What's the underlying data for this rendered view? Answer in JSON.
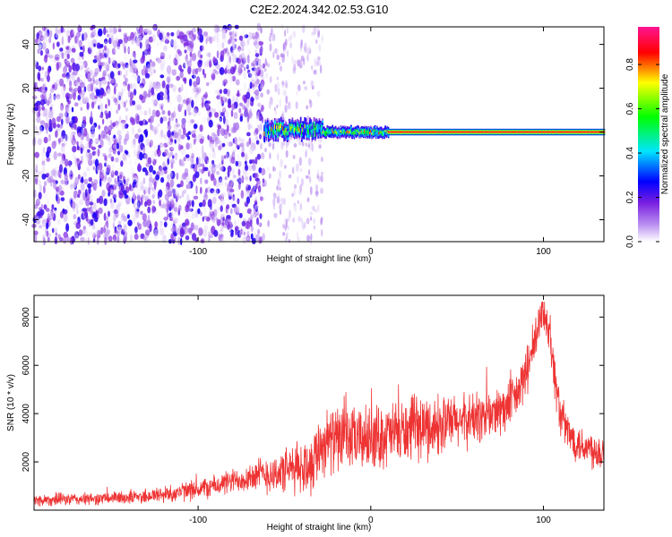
{
  "chart_data": [
    {
      "type": "heatmap",
      "title": "C2E2.2024.342.02.53.G10",
      "xlabel": "Height of straight line (km)",
      "ylabel": "Frequency (Hz)",
      "xlim": [
        -195,
        135
      ],
      "ylim": [
        -50,
        48
      ],
      "xticks": [
        -100,
        0,
        100
      ],
      "xtick_labels": [
        "-100",
        "0",
        "100"
      ],
      "yticks": [
        -40,
        -20,
        0,
        20,
        40
      ],
      "ytick_labels": [
        "-40",
        "-20",
        "0",
        "20",
        "40"
      ],
      "colorbar": {
        "label": "Normalized spectral amplitude",
        "range": [
          0,
          0.97
        ],
        "ticks": [
          0,
          0.2,
          0.4,
          0.6,
          0.8
        ],
        "tick_labels": [
          "0.0",
          "0.2",
          "0.4",
          "0.6",
          "0.8"
        ],
        "colormap": [
          "#ffffff",
          "#8a2be2",
          "#0000ff",
          "#00ffff",
          "#00ff00",
          "#ffff00",
          "#ff0000",
          "#ff00ff"
        ]
      },
      "regions": [
        {
          "x_range": [
            -195,
            -62
          ],
          "freq_range": [
            -50,
            48
          ],
          "amplitude": [
            0.0,
            0.25
          ],
          "pattern": "scattered noise"
        },
        {
          "x_range": [
            -62,
            -28
          ],
          "freq_center": 1,
          "freq_halfwidth": 4,
          "amplitude": [
            0.2,
            0.55
          ],
          "pattern": "broad dispersed line"
        },
        {
          "x_range": [
            -28,
            10
          ],
          "freq_center": 0,
          "freq_halfwidth": 2.5,
          "amplitude": [
            0.3,
            0.7
          ],
          "pattern": "narrowing line"
        },
        {
          "x_range": [
            10,
            135
          ],
          "freq_center": 0,
          "freq_halfwidth": 1.5,
          "amplitude": [
            0.7,
            0.97
          ],
          "pattern": "narrow strong line"
        }
      ],
      "grid": false,
      "legend": "none"
    },
    {
      "type": "line",
      "xlabel": "Height of straight line (km)",
      "ylabel": "SNR (10 * v/v)",
      "xlim": [
        -195,
        135
      ],
      "ylim": [
        0,
        8900
      ],
      "xticks": [
        -100,
        0,
        100
      ],
      "xtick_labels": [
        "-100",
        "0",
        "100"
      ],
      "yticks": [
        2000,
        4000,
        6000,
        8000
      ],
      "ytick_labels": [
        "2000",
        "4000",
        "6000",
        "8000"
      ],
      "color": "#ee3333",
      "x": [
        -195,
        -180,
        -165,
        -150,
        -135,
        -120,
        -105,
        -90,
        -80,
        -70,
        -60,
        -55,
        -50,
        -45,
        -40,
        -35,
        -30,
        -25,
        -20,
        -15,
        -10,
        -5,
        0,
        10,
        20,
        30,
        40,
        50,
        60,
        70,
        80,
        85,
        90,
        95,
        98,
        100,
        103,
        106,
        110,
        115,
        120,
        125,
        130,
        135
      ],
      "y": [
        400,
        450,
        450,
        500,
        550,
        650,
        800,
        1000,
        1200,
        1400,
        1500,
        1500,
        1600,
        1700,
        1800,
        1850,
        2600,
        2900,
        2900,
        3000,
        2900,
        2950,
        3000,
        3100,
        3250,
        3400,
        3500,
        3650,
        3800,
        3950,
        4300,
        4800,
        5700,
        6900,
        7800,
        8300,
        7600,
        5800,
        3900,
        3100,
        2800,
        2600,
        2500,
        2400
      ],
      "noise_amplitude": [
        250,
        250,
        250,
        250,
        300,
        350,
        400,
        450,
        500,
        600,
        800,
        800,
        900,
        1000,
        1100,
        1200,
        1300,
        1300,
        1300,
        1300,
        1300,
        1300,
        1300,
        1300,
        1300,
        1300,
        1200,
        1100,
        1100,
        1100,
        1000,
        1000,
        1000,
        1000,
        900,
        800,
        900,
        1000,
        900,
        800,
        800,
        800,
        800,
        800
      ],
      "grid": false,
      "legend": "none"
    }
  ]
}
